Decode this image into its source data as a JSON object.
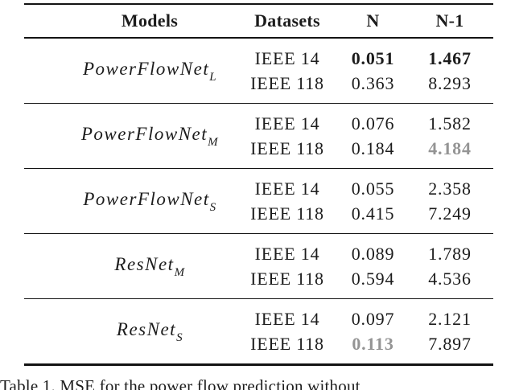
{
  "page": {
    "background": "#ffffff",
    "text_color": "#1c1c1c",
    "rule_color": "#131313",
    "muted_color": "#949494"
  },
  "table": {
    "headers": {
      "models": "Models",
      "datasets": "Datasets",
      "n": "N",
      "n1": "N-1"
    },
    "groups": [
      {
        "model_base": "PowerFlowNet",
        "model_sub": "L",
        "rows": [
          {
            "dataset": "IEEE 14",
            "n": "0.051",
            "n1": "1.467"
          },
          {
            "dataset": "IEEE 118",
            "n": "0.363",
            "n1": "8.293"
          }
        ]
      },
      {
        "model_base": "PowerFlowNet",
        "model_sub": "M",
        "rows": [
          {
            "dataset": "IEEE 14",
            "n": "0.076",
            "n1": "1.582"
          },
          {
            "dataset": "IEEE 118",
            "n": "0.184",
            "n1": "4.184"
          }
        ]
      },
      {
        "model_base": "PowerFlowNet",
        "model_sub": "S",
        "rows": [
          {
            "dataset": "IEEE 14",
            "n": "0.055",
            "n1": "2.358"
          },
          {
            "dataset": "IEEE 118",
            "n": "0.415",
            "n1": "7.249"
          }
        ]
      },
      {
        "model_base": "ResNet",
        "model_sub": "M",
        "rows": [
          {
            "dataset": "IEEE 14",
            "n": "0.089",
            "n1": "1.789"
          },
          {
            "dataset": "IEEE 118",
            "n": "0.594",
            "n1": "4.536"
          }
        ]
      },
      {
        "model_base": "ResNet",
        "model_sub": "S",
        "rows": [
          {
            "dataset": "IEEE 14",
            "n": "0.097",
            "n1": "2.121"
          },
          {
            "dataset": "IEEE 118",
            "n": "0.113",
            "n1": "7.897"
          }
        ]
      }
    ],
    "emphasis_note": "bold black marks best N and N-1 on IEEE 14; gray bold marks 4.184 and 0.113"
  },
  "caption": {
    "label": "Table 1.",
    "text": "MSE for the power flow prediction without"
  }
}
